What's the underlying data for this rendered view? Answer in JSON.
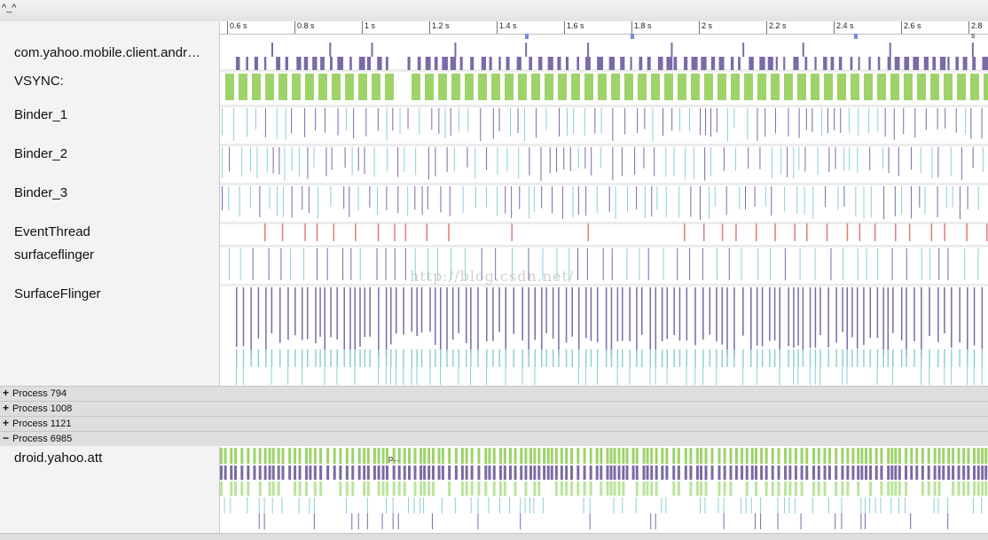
{
  "window": {
    "title": "^_^"
  },
  "ruler": {
    "ticks": [
      "0.6 s",
      "0.8 s",
      "1 s",
      "1.2 s",
      "1.4 s",
      "1.6 s",
      "1.8 s",
      "2 s",
      "2.2 s",
      "2.4 s",
      "2.6 s",
      "2.8 s"
    ]
  },
  "tracks": [
    {
      "name": "com.yahoo.mobile.client.andr…"
    },
    {
      "name": "VSYNC:"
    },
    {
      "name": "Binder_1"
    },
    {
      "name": "Binder_2"
    },
    {
      "name": "Binder_3"
    },
    {
      "name": "EventThread"
    },
    {
      "name": "surfaceflinger"
    },
    {
      "name": "SurfaceFlinger"
    }
  ],
  "processes": [
    {
      "sign": "+",
      "label": "Process 794"
    },
    {
      "sign": "+",
      "label": "Process 1008"
    },
    {
      "sign": "+",
      "label": "Process 1121"
    },
    {
      "sign": "−",
      "label": "Process 6985"
    }
  ],
  "expanded_track": {
    "name": "droid.yahoo.att",
    "slice_label": "p..."
  },
  "watermark": "http://blog.csdn.net/",
  "colors": {
    "purple": "#7a6aa6",
    "green": "#9ed36a",
    "teal": "#8fd0d2",
    "red": "#e07a7a",
    "light_green": "#b9e49a"
  }
}
